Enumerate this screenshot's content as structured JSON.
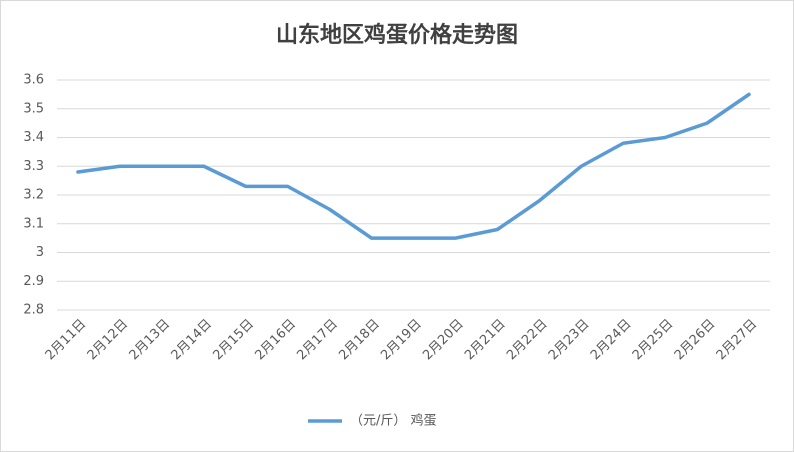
{
  "chart_data": {
    "type": "line",
    "title": "山东地区鸡蛋价格走势图",
    "categories": [
      "2月11日",
      "2月12日",
      "2月13日",
      "2月14日",
      "2月15日",
      "2月16日",
      "2月17日",
      "2月18日",
      "2月19日",
      "2月20日",
      "2月21日",
      "2月22日",
      "2月23日",
      "2月24日",
      "2月25日",
      "2月26日",
      "2月27日"
    ],
    "series": [
      {
        "name": "（元/斤） 鸡蛋",
        "color": "#5b9bd5",
        "values": [
          3.28,
          3.3,
          3.3,
          3.3,
          3.23,
          3.23,
          3.15,
          3.05,
          3.05,
          3.05,
          3.08,
          3.18,
          3.3,
          3.38,
          3.4,
          3.45,
          3.55
        ]
      }
    ],
    "ylim": [
      2.8,
      3.6
    ],
    "yticks": [
      2.8,
      2.9,
      3,
      3.1,
      3.2,
      3.3,
      3.4,
      3.5,
      3.6
    ],
    "grid": true,
    "legend": "bottom"
  }
}
